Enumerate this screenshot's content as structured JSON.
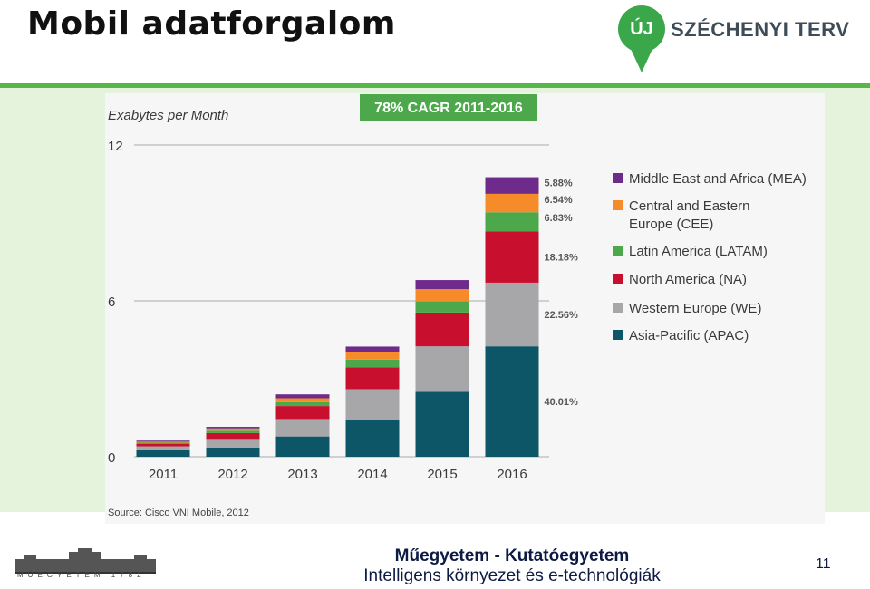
{
  "slide": {
    "title": "Mobil adatforgalom",
    "page_number": "11"
  },
  "logo": {
    "badge": "ÚJ",
    "text": "SZÉCHENYI TERV",
    "color": "#3aa84a"
  },
  "footer": {
    "caption": "MŰEGYETEM 1782",
    "line1": "Műegyetem - Kutatóegyetem",
    "line2": "Intelligens környezet és e-technológiák"
  },
  "chart_data": {
    "type": "bar",
    "stacked": true,
    "title": "78% CAGR 2011-2016",
    "ylabel": "Exabytes per Month",
    "ylim": [
      0,
      12
    ],
    "yticks": [
      0,
      6,
      12
    ],
    "categories": [
      "2011",
      "2012",
      "2013",
      "2014",
      "2015",
      "2016"
    ],
    "series": [
      {
        "name": "Asia-Pacific (APAC)",
        "color": "#0d5667",
        "values": [
          0.25,
          0.35,
          0.78,
          1.4,
          2.5,
          4.25
        ]
      },
      {
        "name": "Western Europe (WE)",
        "color": "#a7a7a9",
        "values": [
          0.15,
          0.3,
          0.67,
          1.2,
          1.75,
          2.45
        ]
      },
      {
        "name": "North America (NA)",
        "color": "#c8102e",
        "values": [
          0.1,
          0.26,
          0.5,
          0.84,
          1.3,
          1.97
        ]
      },
      {
        "name": "Latin America (LATAM)",
        "color": "#4ca84a",
        "values": [
          0.04,
          0.09,
          0.15,
          0.3,
          0.43,
          0.74
        ]
      },
      {
        "name": "Central and Eastern Europe (CEE)",
        "color": "#f58c29",
        "values": [
          0.04,
          0.09,
          0.15,
          0.3,
          0.47,
          0.71
        ]
      },
      {
        "name": "Middle East and Africa (MEA)",
        "color": "#6e2b8b",
        "values": [
          0.04,
          0.06,
          0.15,
          0.2,
          0.35,
          0.64
        ]
      }
    ],
    "annotations": [
      "40.01%",
      "22.56%",
      "18.18%",
      "6.83%",
      "6.54%",
      "5.88%"
    ],
    "legend_position": "right",
    "legend_labels": [
      "Middle East and Africa (MEA)",
      "Central and Eastern",
      "Europe (CEE)",
      "Latin America (LATAM)",
      "North America (NA)",
      "Western Europe (WE)",
      "Asia-Pacific (APAC)"
    ],
    "source": "Source: Cisco VNI Mobile, 2012",
    "title_color": "#4ca84a",
    "grid": true
  }
}
